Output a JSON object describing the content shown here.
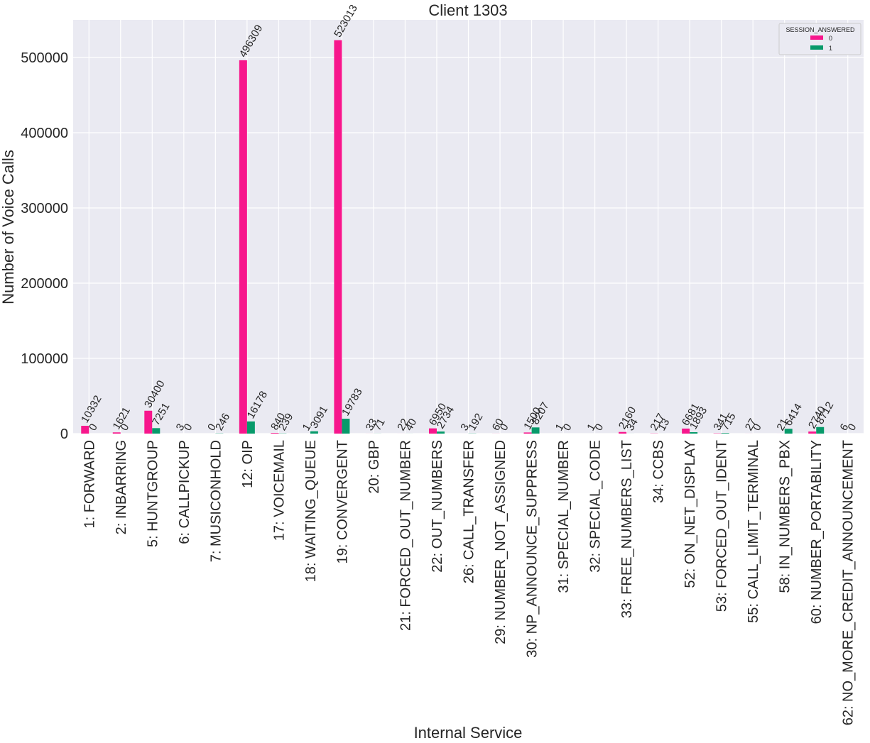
{
  "chart_data": {
    "type": "bar",
    "title": "Client 1303",
    "xlabel": "Internal Service",
    "ylabel": "Number of Voice Calls",
    "ylim": [
      0,
      550000
    ],
    "yticks": [
      0,
      100000,
      200000,
      300000,
      400000,
      500000
    ],
    "ytick_labels": [
      "0",
      "100000",
      "200000",
      "300000",
      "400000",
      "500000"
    ],
    "grid": true,
    "legend": {
      "title": "SESSION_ANSWERED",
      "position": "top-right"
    },
    "categories": [
      "1: FORWARD",
      "2: INBARRING",
      "5: HUNTGROUP",
      "6: CALLPICKUP",
      "7: MUSICONHOLD",
      "12: OIP",
      "17: VOICEMAIL",
      "18: WAITING_QUEUE",
      "19: CONVERGENT",
      "20: GBP",
      "21: FORCED_OUT_NUMBER",
      "22: OUT_NUMBERS",
      "26: CALL_TRANSFER",
      "29: NUMBER_NOT_ASSIGNED",
      "30: NP_ANNOUNCE_SUPPRESS",
      "31: SPECIAL_NUMBER",
      "32: SPECIAL_CODE",
      "33: FREE_NUMBERS_LIST",
      "34: CCBS",
      "52: ON_NET_DISPLAY",
      "53: FORCED_OUT_IDENT",
      "55: CALL_LIMIT_TERMINAL",
      "58: IN_NUMBERS_PBX",
      "60: NUMBER_PORTABILITY",
      "62: NO_MORE_CREDIT_ANNOUNCEMENT"
    ],
    "series": [
      {
        "name": "0",
        "color": "#f7168c",
        "values": [
          10332,
          1621,
          30400,
          3,
          0,
          496309,
          840,
          1,
          523013,
          33,
          22,
          6950,
          3,
          60,
          1500,
          1,
          1,
          2160,
          217,
          6681,
          341,
          27,
          21,
          2740,
          6
        ]
      },
      {
        "name": "1",
        "color": "#079a6a",
        "values": [
          0,
          0,
          7251,
          0,
          246,
          16178,
          239,
          3091,
          19783,
          71,
          40,
          2734,
          192,
          0,
          8207,
          0,
          0,
          34,
          13,
          1893,
          715,
          0,
          6414,
          8712,
          0
        ]
      }
    ]
  }
}
